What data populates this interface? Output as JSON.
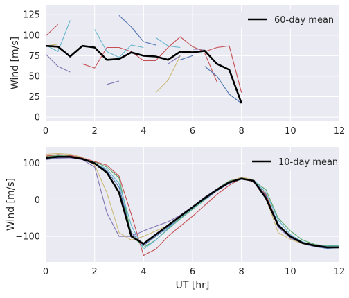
{
  "chart_data": [
    {
      "type": "line",
      "ylabel": "Wind [m/s]",
      "xlabel": "",
      "xlim": [
        0,
        12
      ],
      "ylim": [
        -5,
        137
      ],
      "xticks": [
        0,
        2,
        4,
        6,
        8,
        10,
        12
      ],
      "yticks": [
        0,
        25,
        50,
        75,
        100,
        125
      ],
      "grid": true,
      "legend": {
        "position": "top-right",
        "entries": [
          "60-day mean"
        ]
      },
      "mean": {
        "name": "60-day mean",
        "color": "#000000",
        "x": [
          0,
          0.5,
          1,
          1.5,
          2,
          2.5,
          3,
          3.5,
          4,
          4.5,
          5,
          5.5,
          6,
          6.5,
          7,
          7.5,
          8
        ],
        "y": [
          87,
          86,
          74,
          87,
          85,
          70,
          71,
          79,
          75,
          74,
          70,
          80,
          79,
          81,
          65,
          58,
          17
        ]
      },
      "series": [
        {
          "color": "#c44e52",
          "x": [
            0,
            0.5
          ],
          "y": [
            99,
            113
          ]
        },
        {
          "color": "#8172b2",
          "x": [
            0,
            0.5,
            1
          ],
          "y": [
            77,
            62,
            55
          ]
        },
        {
          "color": "#ccb974",
          "x": [
            0,
            0.5
          ],
          "y": [
            87,
            89
          ]
        },
        {
          "color": "#64b5cd",
          "x": [
            0,
            0.5,
            1
          ],
          "y": [
            88,
            80,
            118
          ]
        },
        {
          "color": "#c44e52",
          "x": [
            1.5,
            2,
            2.5,
            3,
            3.5,
            4,
            4.5,
            5,
            5.5,
            6,
            6.5,
            7,
            7.5,
            8
          ],
          "y": [
            65,
            60,
            85,
            85,
            80,
            69,
            69,
            85,
            98,
            86,
            80,
            85,
            87,
            30
          ]
        },
        {
          "color": "#64b5cd",
          "x": [
            2,
            2.5,
            3,
            3.5,
            4
          ],
          "y": [
            107,
            80,
            73,
            88,
            85
          ]
        },
        {
          "color": "#4c72b0",
          "x": [
            3,
            3.5,
            4,
            4.5
          ],
          "y": [
            124,
            110,
            92,
            88
          ]
        },
        {
          "color": "#8172b2",
          "x": [
            2.5,
            3
          ],
          "y": [
            40,
            44
          ]
        },
        {
          "color": "#ccb974",
          "x": [
            4.5,
            5,
            5.5
          ],
          "y": [
            30,
            45,
            75
          ]
        },
        {
          "color": "#64b5cd",
          "x": [
            4.5,
            5,
            5.5
          ],
          "y": [
            97,
            87,
            85
          ]
        },
        {
          "color": "#8172b2",
          "x": [
            5,
            5.5
          ],
          "y": [
            65,
            75
          ]
        },
        {
          "color": "#4c72b0",
          "x": [
            5.5,
            6
          ],
          "y": [
            70,
            75
          ]
        },
        {
          "color": "#8172b2",
          "x": [
            6,
            6.5
          ],
          "y": [
            83,
            83
          ]
        },
        {
          "color": "#c44e52",
          "x": [
            6.5,
            7
          ],
          "y": [
            78,
            43
          ]
        },
        {
          "color": "#4c72b0",
          "x": [
            6.5,
            7,
            7.5,
            8
          ],
          "y": [
            62,
            50,
            28,
            17
          ]
        }
      ]
    },
    {
      "type": "line",
      "ylabel": "Wind [m/s]",
      "xlabel": "UT [hr]",
      "xlim": [
        0,
        12
      ],
      "ylim": [
        -170,
        145
      ],
      "xticks": [
        0,
        2,
        4,
        6,
        8,
        10,
        12
      ],
      "yticks": [
        -100,
        0,
        100
      ],
      "grid": true,
      "legend": {
        "position": "top-right",
        "entries": [
          "10-day mean"
        ]
      },
      "mean": {
        "name": "10-day mean",
        "color": "#000000",
        "x": [
          0,
          0.5,
          1,
          1.5,
          2,
          2.5,
          3,
          3.5,
          4,
          4.5,
          5,
          5.5,
          6,
          6.5,
          7,
          7.5,
          8,
          8.5,
          9,
          9.5,
          10,
          10.5,
          11,
          11.5,
          12
        ],
        "y": [
          115,
          118,
          118,
          112,
          100,
          75,
          20,
          -100,
          -120,
          -95,
          -70,
          -45,
          -20,
          5,
          28,
          48,
          58,
          52,
          5,
          -70,
          -100,
          -118,
          -125,
          -130,
          -130
        ]
      },
      "series": [
        {
          "color": "#4c72b0",
          "x": [
            0,
            0.5,
            1,
            1.5,
            2,
            2.5,
            3,
            3.5,
            4,
            4.5,
            5,
            5.5,
            6,
            6.5,
            7,
            7.5,
            8,
            8.5,
            9,
            9.5,
            10,
            10.5,
            11,
            11.5,
            12
          ],
          "y": [
            113,
            116,
            117,
            112,
            102,
            80,
            35,
            -90,
            -125,
            -100,
            -75,
            -50,
            -25,
            0,
            25,
            45,
            57,
            55,
            12,
            -65,
            -102,
            -120,
            -128,
            -133,
            -131
          ]
        },
        {
          "color": "#55a868",
          "x": [
            0,
            0.5,
            1,
            1.5,
            2,
            2.5,
            3,
            3.5,
            4,
            4.5,
            5,
            5.5,
            6,
            6.5,
            7,
            7.5,
            8,
            8.5,
            9,
            9.5,
            10,
            10.5,
            11,
            11.5,
            12
          ],
          "y": [
            118,
            121,
            120,
            114,
            104,
            90,
            60,
            -95,
            -130,
            -110,
            -80,
            -52,
            -26,
            0,
            30,
            52,
            60,
            52,
            28,
            -50,
            -85,
            -110,
            -122,
            -126,
            -124
          ]
        },
        {
          "color": "#c44e52",
          "x": [
            0,
            0.5,
            1,
            1.5,
            2,
            2.5,
            3,
            3.5,
            4,
            4.5,
            5,
            5.5,
            6,
            6.5,
            7,
            7.5,
            8,
            8.5,
            9,
            9.5,
            10,
            10.5,
            11,
            11.5,
            12
          ],
          "y": [
            120,
            124,
            122,
            115,
            105,
            95,
            65,
            -40,
            -152,
            -135,
            -100,
            -72,
            -45,
            -15,
            15,
            40,
            58,
            50,
            15,
            -70,
            -100,
            -118,
            -125,
            -128,
            -128
          ]
        },
        {
          "color": "#8172b2",
          "x": [
            0,
            0.5,
            1,
            1.5,
            2,
            2.5,
            3,
            3.5,
            4,
            4.5,
            5,
            5.5,
            6,
            6.5,
            7,
            7.5,
            8,
            8.5,
            9,
            9.5,
            10,
            10.5,
            11,
            11.5,
            12
          ],
          "y": [
            110,
            114,
            115,
            110,
            90,
            -35,
            -100,
            -100,
            -85,
            -72,
            -60,
            -42,
            -18,
            8,
            30,
            50,
            60,
            55,
            10,
            -75,
            -105,
            -120,
            -127,
            -130,
            -130
          ]
        },
        {
          "color": "#ccb974",
          "x": [
            0,
            0.5,
            1,
            1.5,
            2,
            2.5,
            3,
            3.5,
            4,
            4.5,
            5,
            5.5,
            6,
            6.5,
            7,
            7.5,
            8,
            8.5,
            9,
            9.5,
            10,
            10.5,
            11,
            11.5,
            12
          ],
          "y": [
            125,
            127,
            125,
            117,
            95,
            20,
            -90,
            -110,
            -100,
            -85,
            -70,
            -48,
            -22,
            5,
            28,
            50,
            62,
            55,
            5,
            -90,
            -108,
            -120,
            -126,
            -128,
            -127
          ]
        },
        {
          "color": "#64b5cd",
          "x": [
            0,
            0.5,
            1,
            1.5,
            2,
            2.5,
            3,
            3.5,
            4,
            4.5,
            5,
            5.5,
            6,
            6.5,
            7,
            7.5,
            8,
            8.5,
            9,
            9.5,
            10,
            10.5,
            11,
            11.5,
            12
          ],
          "y": [
            115,
            119,
            118,
            113,
            100,
            85,
            45,
            -70,
            -135,
            -110,
            -78,
            -50,
            -24,
            2,
            27,
            47,
            56,
            54,
            20,
            -55,
            -95,
            -115,
            -124,
            -127,
            -126
          ]
        }
      ]
    }
  ]
}
